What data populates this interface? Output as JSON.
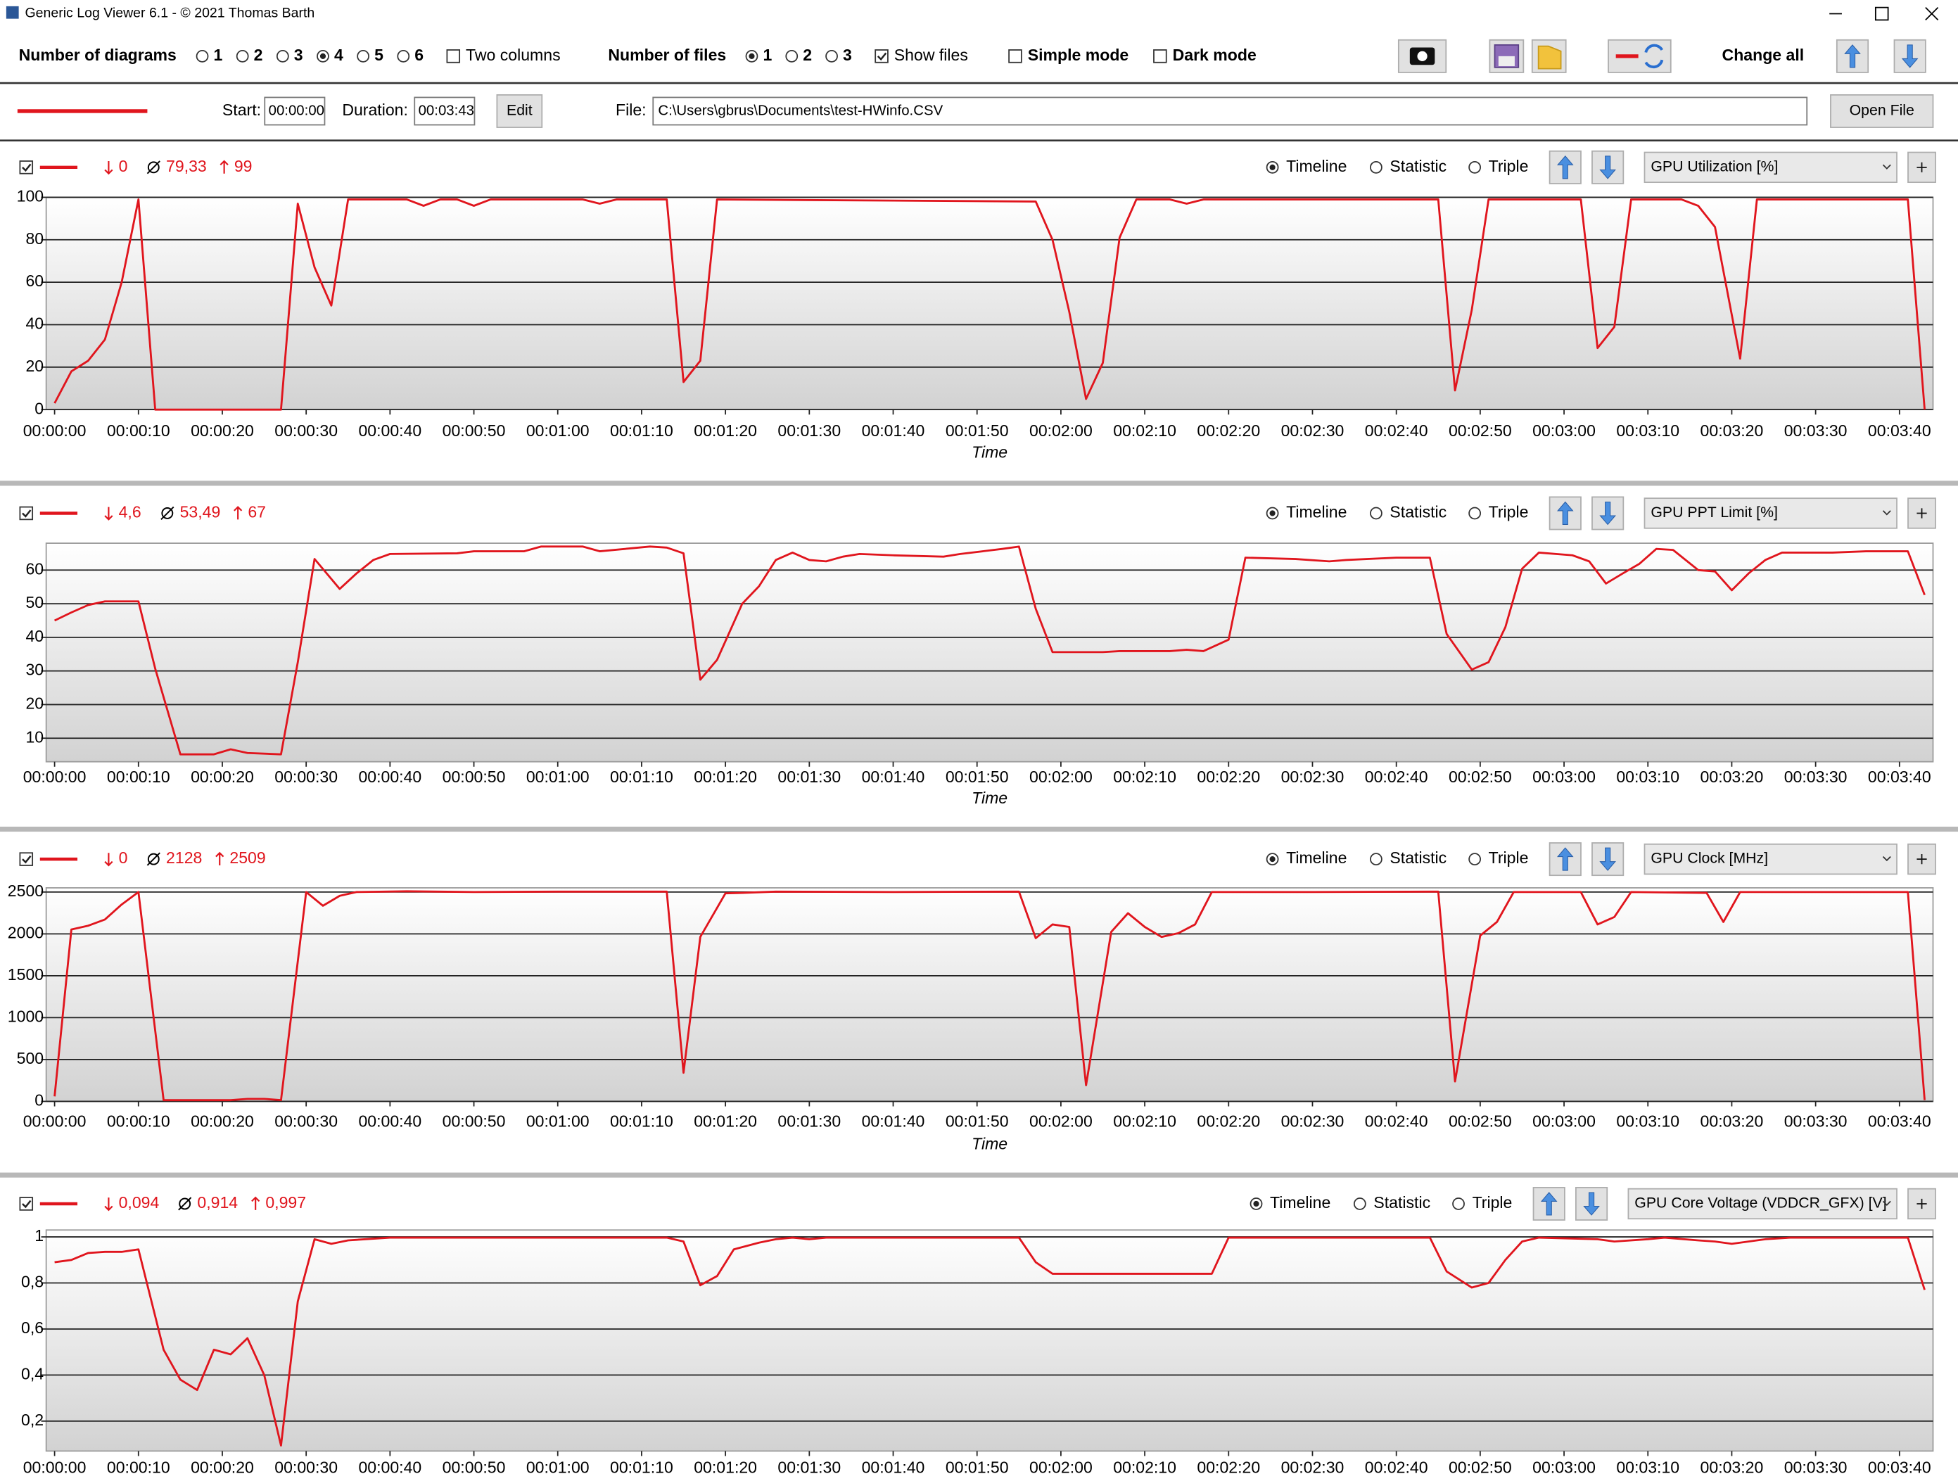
{
  "window": {
    "title": "Generic Log Viewer 6.1 - © 2021 Thomas Barth"
  },
  "toolbar": {
    "diagrams": {
      "label": "Number of diagrams",
      "options": [
        "1",
        "2",
        "3",
        "4",
        "5",
        "6"
      ],
      "selected_index": 3
    },
    "two_columns": {
      "label": "Two columns",
      "checked": false
    },
    "files": {
      "label": "Number of files",
      "options": [
        "1",
        "2",
        "3"
      ],
      "selected_index": 0
    },
    "show_files": {
      "label": "Show files",
      "checked": true
    },
    "simple_mode": {
      "label": "Simple mode",
      "checked": false
    },
    "dark_mode": {
      "label": "Dark mode",
      "checked": false
    },
    "change_all": "Change all"
  },
  "file_bar": {
    "start_label": "Start:",
    "start": "00:00:00",
    "duration_label": "Duration:",
    "duration": "00:03:43",
    "edit": "Edit",
    "file_label": "File:",
    "file": "C:\\Users\\gbrus\\Documents\\test-HWinfo.CSV",
    "open": "Open File"
  },
  "chart_data": [
    {
      "type": "line",
      "view_options": [
        "Timeline",
        "Statistic",
        "Triple"
      ],
      "view_selected_index": 0,
      "grid": true,
      "stats": {
        "min": 0,
        "avg": {
          "value": 79.33,
          "label": "79,33"
        },
        "max": 99
      },
      "x_label": "Time",
      "xlim": [
        -1,
        224
      ],
      "ylim": [
        0,
        100
      ],
      "yticks": [
        0,
        20,
        40,
        60,
        80,
        100
      ],
      "xticks": [
        {
          "value": 0,
          "label": "00:00:00"
        },
        {
          "value": 10,
          "label": "00:00:10"
        },
        {
          "value": 20,
          "label": "00:00:20"
        },
        {
          "value": 30,
          "label": "00:00:30"
        },
        {
          "value": 40,
          "label": "00:00:40"
        },
        {
          "value": 50,
          "label": "00:00:50"
        },
        {
          "value": 60,
          "label": "00:01:00"
        },
        {
          "value": 70,
          "label": "00:01:10"
        },
        {
          "value": 80,
          "label": "00:01:20"
        },
        {
          "value": 90,
          "label": "00:01:30"
        },
        {
          "value": 100,
          "label": "00:01:40"
        },
        {
          "value": 110,
          "label": "00:01:50"
        },
        {
          "value": 120,
          "label": "00:02:00"
        },
        {
          "value": 130,
          "label": "00:02:10"
        },
        {
          "value": 140,
          "label": "00:02:20"
        },
        {
          "value": 150,
          "label": "00:02:30"
        },
        {
          "value": 160,
          "label": "00:02:40"
        },
        {
          "value": 170,
          "label": "00:02:50"
        },
        {
          "value": 180,
          "label": "00:03:00"
        },
        {
          "value": 190,
          "label": "00:03:10"
        },
        {
          "value": 200,
          "label": "00:03:20"
        },
        {
          "value": 210,
          "label": "00:03:30"
        },
        {
          "value": 220,
          "label": "00:03:40"
        }
      ],
      "x": [
        0,
        2,
        4,
        6,
        8,
        10,
        12,
        27,
        29,
        31,
        33,
        35,
        42,
        44,
        46,
        48,
        50,
        52,
        63,
        65,
        67,
        73,
        75,
        77,
        79,
        117,
        119,
        121,
        123,
        125,
        127,
        129,
        133,
        135,
        137,
        165,
        167,
        169,
        171,
        182,
        184,
        186,
        188,
        194,
        196,
        198,
        201,
        203,
        221,
        223
      ],
      "series": [
        {
          "name": "GPU Utilization [%]",
          "color": "#e0151d",
          "values": [
            3,
            18,
            23,
            33,
            60,
            99,
            0,
            0,
            97,
            67,
            49,
            99,
            99,
            96,
            99,
            99,
            96,
            99,
            99,
            97,
            99,
            99,
            13,
            23,
            99,
            98,
            80,
            46,
            5,
            22,
            81,
            99,
            99,
            97,
            99,
            99,
            9,
            47,
            99,
            99,
            29,
            39,
            99,
            99,
            96,
            86,
            24,
            99,
            99,
            0
          ]
        }
      ]
    },
    {
      "type": "line",
      "view_options": [
        "Timeline",
        "Statistic",
        "Triple"
      ],
      "view_selected_index": 0,
      "grid": true,
      "stats": {
        "min": {
          "value": 4.6,
          "label": "4,6"
        },
        "avg": {
          "value": 53.49,
          "label": "53,49"
        },
        "max": 67
      },
      "x_label": "Time",
      "xlim": [
        -1,
        224
      ],
      "ylim": [
        3,
        68
      ],
      "yticks": [
        10,
        20,
        30,
        40,
        50,
        60
      ],
      "xticks": [
        {
          "value": 0,
          "label": "00:00:00"
        },
        {
          "value": 10,
          "label": "00:00:10"
        },
        {
          "value": 20,
          "label": "00:00:20"
        },
        {
          "value": 30,
          "label": "00:00:30"
        },
        {
          "value": 40,
          "label": "00:00:40"
        },
        {
          "value": 50,
          "label": "00:00:50"
        },
        {
          "value": 60,
          "label": "00:01:00"
        },
        {
          "value": 70,
          "label": "00:01:10"
        },
        {
          "value": 80,
          "label": "00:01:20"
        },
        {
          "value": 90,
          "label": "00:01:30"
        },
        {
          "value": 100,
          "label": "00:01:40"
        },
        {
          "value": 110,
          "label": "00:01:50"
        },
        {
          "value": 120,
          "label": "00:02:00"
        },
        {
          "value": 130,
          "label": "00:02:10"
        },
        {
          "value": 140,
          "label": "00:02:20"
        },
        {
          "value": 150,
          "label": "00:02:30"
        },
        {
          "value": 160,
          "label": "00:02:40"
        },
        {
          "value": 170,
          "label": "00:02:50"
        },
        {
          "value": 180,
          "label": "00:03:00"
        },
        {
          "value": 190,
          "label": "00:03:10"
        },
        {
          "value": 200,
          "label": "00:03:20"
        },
        {
          "value": 210,
          "label": "00:03:30"
        },
        {
          "value": 220,
          "label": "00:03:40"
        }
      ],
      "x": [
        0,
        2,
        4,
        6,
        10,
        12,
        15,
        19,
        21,
        23,
        27,
        29,
        31,
        34,
        36,
        38,
        40,
        48,
        50,
        56,
        58,
        63,
        65,
        71,
        73,
        75,
        77,
        79,
        82,
        84,
        86,
        88,
        90,
        92,
        94,
        96,
        100,
        106,
        108,
        113,
        115,
        117,
        119,
        125,
        127,
        133,
        135,
        137,
        140,
        142,
        148,
        152,
        154,
        160,
        164,
        166,
        169,
        171,
        173,
        175,
        177,
        181,
        183,
        185,
        187,
        189,
        191,
        193,
        196,
        198,
        200,
        202,
        204,
        206,
        212,
        216,
        221,
        223
      ],
      "series": [
        {
          "name": "GPU PPT Limit [%]",
          "color": "#e0151d",
          "values": [
            45,
            47.4,
            49.6,
            50.7,
            50.7,
            30.7,
            5.2,
            5.2,
            6.7,
            5.6,
            5.2,
            32.6,
            63.3,
            54.4,
            59,
            63,
            64.8,
            65,
            65.6,
            65.6,
            67,
            67,
            65.6,
            67,
            66.7,
            65,
            27.4,
            33.3,
            50,
            55.2,
            63,
            65.2,
            63,
            62.6,
            64,
            64.8,
            64.4,
            64,
            64.8,
            66.3,
            67,
            48.5,
            35.6,
            35.6,
            35.9,
            35.9,
            36.3,
            35.9,
            39.3,
            63.7,
            63.3,
            62.6,
            63,
            63.7,
            63.7,
            41,
            30.4,
            32.6,
            43,
            60.4,
            65.2,
            64.4,
            62.6,
            56,
            59,
            61.9,
            66.3,
            66,
            60,
            59.6,
            54,
            59,
            63,
            65.2,
            65.2,
            65.6,
            65.6,
            52.6
          ]
        }
      ]
    },
    {
      "type": "line",
      "view_options": [
        "Timeline",
        "Statistic",
        "Triple"
      ],
      "view_selected_index": 0,
      "grid": true,
      "stats": {
        "min": 0,
        "avg": 2128,
        "max": 2509
      },
      "x_label": "Time",
      "xlim": [
        -1,
        224
      ],
      "ylim": [
        0,
        2550
      ],
      "yticks": [
        0,
        500,
        1000,
        1500,
        2000,
        2500
      ],
      "xticks": [
        {
          "value": 0,
          "label": "00:00:00"
        },
        {
          "value": 10,
          "label": "00:00:10"
        },
        {
          "value": 20,
          "label": "00:00:20"
        },
        {
          "value": 30,
          "label": "00:00:30"
        },
        {
          "value": 40,
          "label": "00:00:40"
        },
        {
          "value": 50,
          "label": "00:00:50"
        },
        {
          "value": 60,
          "label": "00:01:00"
        },
        {
          "value": 70,
          "label": "00:01:10"
        },
        {
          "value": 80,
          "label": "00:01:20"
        },
        {
          "value": 90,
          "label": "00:01:30"
        },
        {
          "value": 100,
          "label": "00:01:40"
        },
        {
          "value": 110,
          "label": "00:01:50"
        },
        {
          "value": 120,
          "label": "00:02:00"
        },
        {
          "value": 130,
          "label": "00:02:10"
        },
        {
          "value": 140,
          "label": "00:02:20"
        },
        {
          "value": 150,
          "label": "00:02:30"
        },
        {
          "value": 160,
          "label": "00:02:40"
        },
        {
          "value": 170,
          "label": "00:02:50"
        },
        {
          "value": 180,
          "label": "00:03:00"
        },
        {
          "value": 190,
          "label": "00:03:10"
        },
        {
          "value": 200,
          "label": "00:03:20"
        },
        {
          "value": 210,
          "label": "00:03:30"
        },
        {
          "value": 220,
          "label": "00:03:40"
        }
      ],
      "x": [
        0,
        2,
        4,
        6,
        8,
        10,
        13,
        21,
        23,
        25,
        27,
        30,
        32,
        34,
        36,
        42,
        50,
        60,
        73,
        75,
        77,
        80,
        82,
        86,
        100,
        115,
        117,
        119,
        121,
        123,
        126,
        128,
        130,
        132,
        134,
        136,
        138,
        150,
        165,
        167,
        170,
        172,
        174,
        182,
        184,
        186,
        188,
        197,
        199,
        201,
        221,
        223
      ],
      "series": [
        {
          "name": "GPU Clock [MHz]",
          "color": "#e0151d",
          "values": [
            60,
            2053,
            2098,
            2172,
            2351,
            2500,
            15,
            15,
            30,
            30,
            15,
            2500,
            2336,
            2455,
            2500,
            2509,
            2500,
            2505,
            2505,
            342,
            1964,
            2485,
            2490,
            2505,
            2500,
            2505,
            1949,
            2113,
            2083,
            193,
            2024,
            2247,
            2083,
            1964,
            2009,
            2113,
            2500,
            2500,
            2505,
            238,
            1979,
            2143,
            2500,
            2500,
            2113,
            2202,
            2500,
            2490,
            2143,
            2500,
            2500,
            15
          ]
        }
      ]
    },
    {
      "type": "line",
      "view_options": [
        "Timeline",
        "Statistic",
        "Triple"
      ],
      "view_selected_index": 0,
      "grid": true,
      "stats": {
        "min": {
          "value": 0.094,
          "label": "0,094"
        },
        "avg": {
          "value": 0.914,
          "label": "0,914"
        },
        "max": {
          "value": 0.997,
          "label": "0,997"
        }
      },
      "xlim": [
        -1,
        224
      ],
      "ylim": [
        0.07,
        1.03
      ],
      "yticks": [
        {
          "value": 0.2,
          "label": "0,2"
        },
        {
          "value": 0.4,
          "label": "0,4"
        },
        {
          "value": 0.6,
          "label": "0,6"
        },
        {
          "value": 0.8,
          "label": "0,8"
        },
        1
      ],
      "xticks": [
        {
          "value": 0,
          "label": "00:00:00"
        },
        {
          "value": 10,
          "label": "00:00:10"
        },
        {
          "value": 20,
          "label": "00:00:20"
        },
        {
          "value": 30,
          "label": "00:00:30"
        },
        {
          "value": 40,
          "label": "00:00:40"
        },
        {
          "value": 50,
          "label": "00:00:50"
        },
        {
          "value": 60,
          "label": "00:01:00"
        },
        {
          "value": 70,
          "label": "00:01:10"
        },
        {
          "value": 80,
          "label": "00:01:20"
        },
        {
          "value": 90,
          "label": "00:01:30"
        },
        {
          "value": 100,
          "label": "00:01:40"
        },
        {
          "value": 110,
          "label": "00:01:50"
        },
        {
          "value": 120,
          "label": "00:02:00"
        },
        {
          "value": 130,
          "label": "00:02:10"
        },
        {
          "value": 140,
          "label": "00:02:20"
        },
        {
          "value": 150,
          "label": "00:02:30"
        },
        {
          "value": 160,
          "label": "00:02:40"
        },
        {
          "value": 170,
          "label": "00:02:50"
        },
        {
          "value": 180,
          "label": "00:03:00"
        },
        {
          "value": 190,
          "label": "00:03:10"
        },
        {
          "value": 200,
          "label": "00:03:20"
        },
        {
          "value": 210,
          "label": "00:03:30"
        },
        {
          "value": 220,
          "label": "00:03:40"
        }
      ],
      "x": [
        0,
        2,
        4,
        6,
        8,
        10,
        13,
        15,
        17,
        19,
        21,
        23,
        25,
        27,
        29,
        31,
        33,
        35,
        40,
        73,
        75,
        77,
        79,
        81,
        84,
        86,
        88,
        90,
        92,
        115,
        117,
        119,
        138,
        140,
        164,
        166,
        169,
        171,
        173,
        175,
        177,
        184,
        186,
        190,
        192,
        196,
        198,
        200,
        204,
        207,
        221,
        223
      ],
      "series": [
        {
          "name": "GPU Core Voltage (VDDCR_GFX) [V]",
          "color": "#e0151d",
          "values": [
            0.89,
            0.9,
            0.93,
            0.935,
            0.935,
            0.946,
            0.51,
            0.38,
            0.335,
            0.51,
            0.49,
            0.56,
            0.4,
            0.094,
            0.72,
            0.99,
            0.97,
            0.985,
            0.997,
            0.997,
            0.98,
            0.79,
            0.83,
            0.946,
            0.975,
            0.99,
            0.997,
            0.99,
            0.997,
            0.997,
            0.89,
            0.84,
            0.84,
            0.997,
            0.997,
            0.85,
            0.78,
            0.8,
            0.9,
            0.98,
            0.997,
            0.99,
            0.98,
            0.99,
            0.997,
            0.985,
            0.98,
            0.97,
            0.99,
            0.997,
            0.997,
            0.77
          ]
        }
      ]
    }
  ]
}
